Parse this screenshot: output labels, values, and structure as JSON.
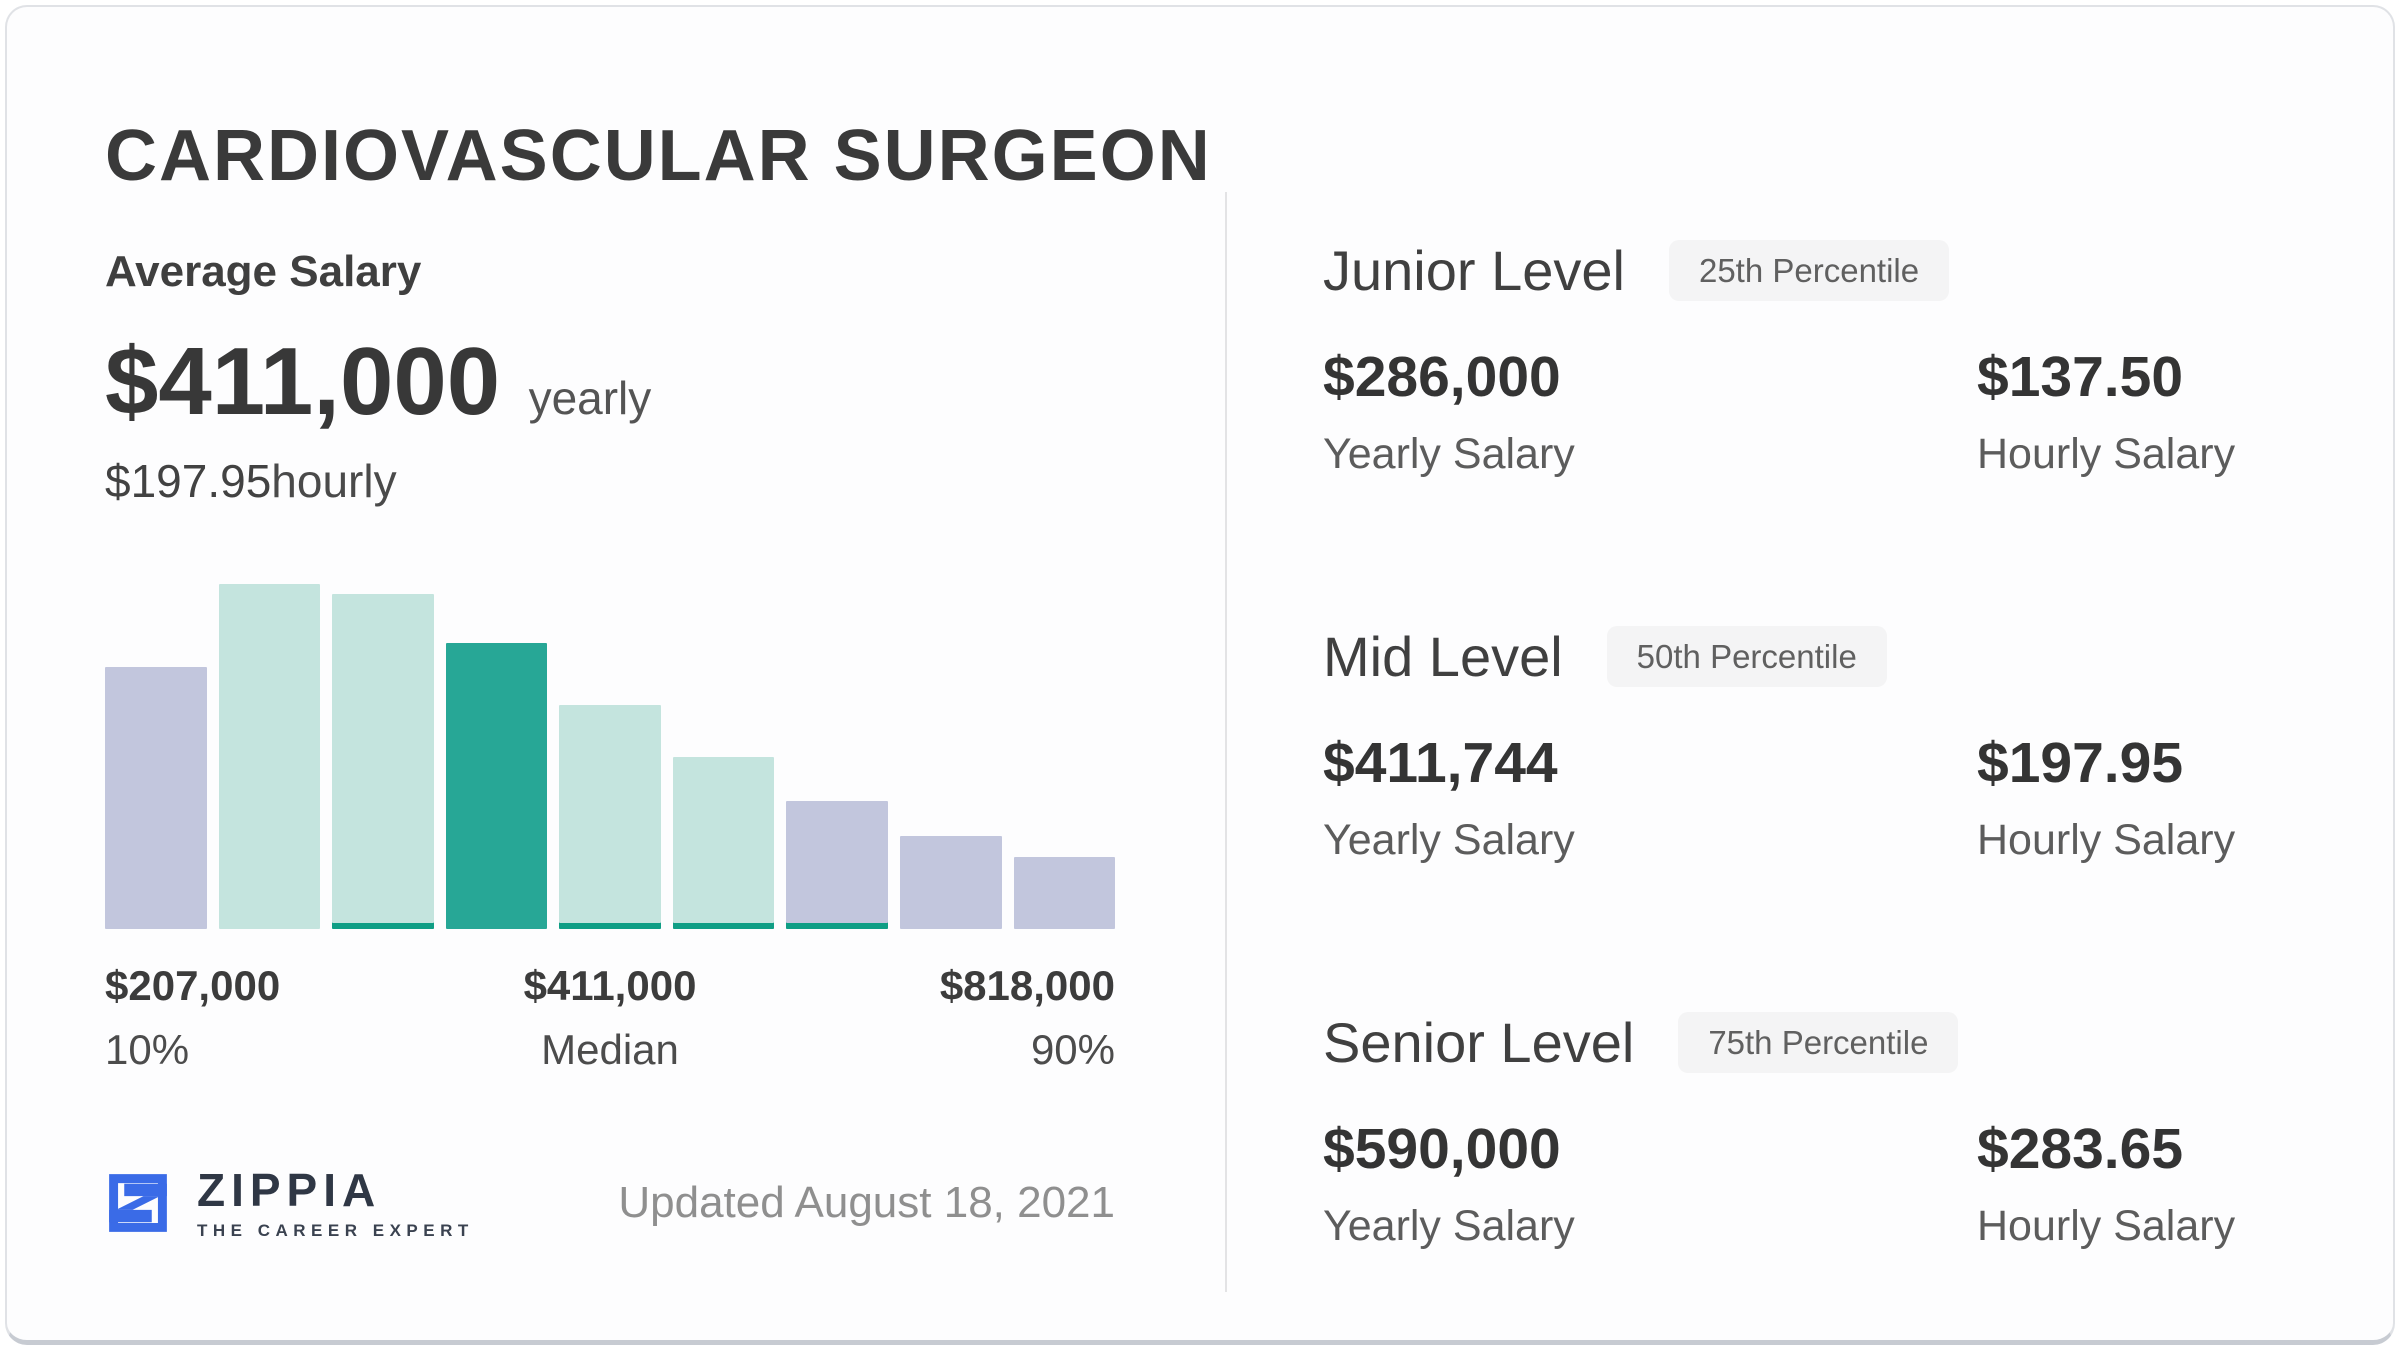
{
  "card": {
    "title": "CARDIOVASCULAR SURGEON",
    "average_salary": {
      "label": "Average Salary",
      "yearly_value": "$411,000",
      "yearly_unit": "yearly",
      "hourly_value": "$197.95",
      "hourly_unit": "hourly"
    },
    "updated": "Updated August 18, 2021",
    "logo": {
      "name": "ZIPPIA",
      "tagline": "THE CAREER EXPERT",
      "icon": "zippia-z-icon",
      "brand_blue": "#3a6be7"
    }
  },
  "chart_data": {
    "type": "bar",
    "subtype": "salary-distribution-histogram",
    "title": "Cardiovascular Surgeon salary distribution",
    "xlabel": "",
    "ylabel": "",
    "grid": false,
    "legend": false,
    "ylim": [
      0,
      1
    ],
    "values": [
      0.76,
      1.0,
      0.97,
      0.83,
      0.65,
      0.5,
      0.37,
      0.27,
      0.21
    ],
    "highlight_index": 3,
    "bars": [
      {
        "value": 0.76,
        "color": "lavender",
        "underline": false
      },
      {
        "value": 1.0,
        "color": "mint",
        "underline": false
      },
      {
        "value": 0.97,
        "color": "mint",
        "underline": true
      },
      {
        "value": 0.83,
        "color": "teal",
        "underline": false
      },
      {
        "value": 0.65,
        "color": "mint",
        "underline": true
      },
      {
        "value": 0.5,
        "color": "mint",
        "underline": true
      },
      {
        "value": 0.37,
        "color": "lavender",
        "underline": true
      },
      {
        "value": 0.27,
        "color": "lavender",
        "underline": false
      },
      {
        "value": 0.21,
        "color": "lavender",
        "underline": false
      }
    ],
    "colors": {
      "lavender": "#c2c6dd",
      "mint": "#c4e4de",
      "teal": "#27a796",
      "underline": "#0f9e85"
    },
    "x_markers": [
      {
        "value": "$207,000",
        "label": "10%",
        "align": "left"
      },
      {
        "value": "$411,000",
        "label": "Median",
        "align": "center"
      },
      {
        "value": "$818,000",
        "label": "90%",
        "align": "right"
      }
    ]
  },
  "levels": [
    {
      "name": "Junior Level",
      "badge": "25th Percentile",
      "yearly_value": "$286,000",
      "yearly_label": "Yearly Salary",
      "hourly_value": "$137.50",
      "hourly_label": "Hourly Salary"
    },
    {
      "name": "Mid Level",
      "badge": "50th Percentile",
      "yearly_value": "$411,744",
      "yearly_label": "Yearly Salary",
      "hourly_value": "$197.95",
      "hourly_label": "Hourly Salary"
    },
    {
      "name": "Senior Level",
      "badge": "75th Percentile",
      "yearly_value": "$590,000",
      "yearly_label": "Yearly Salary",
      "hourly_value": "$283.65",
      "hourly_label": "Hourly Salary"
    }
  ]
}
